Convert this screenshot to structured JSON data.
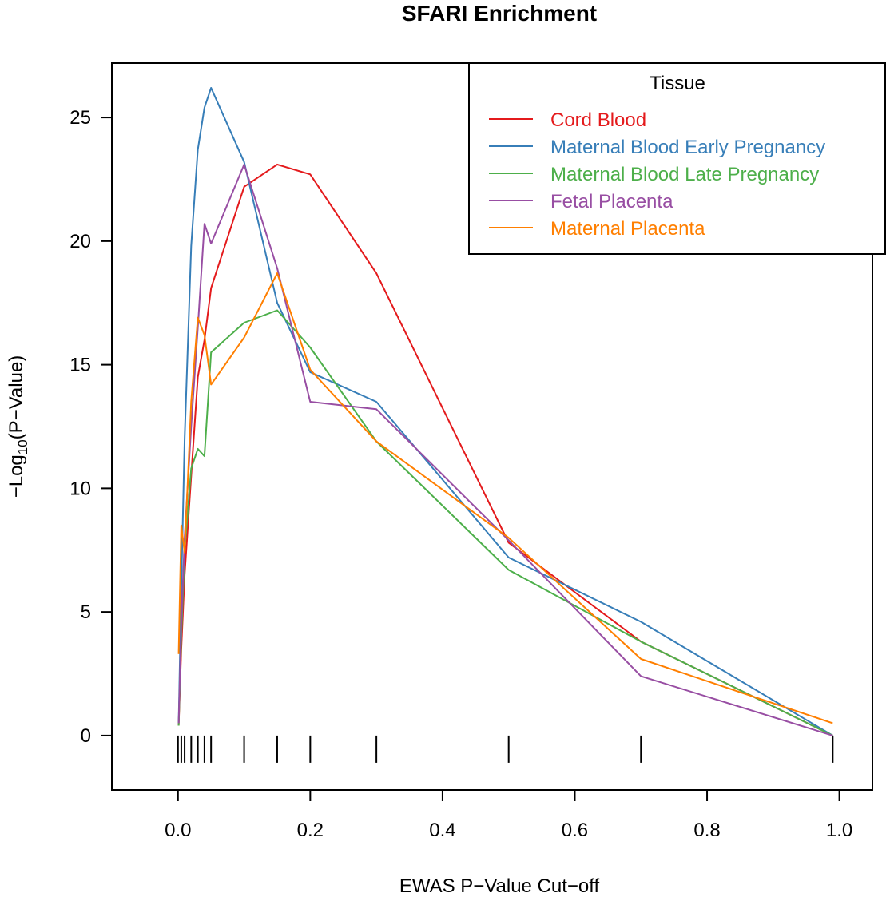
{
  "chart_data": {
    "type": "line",
    "title": "SFARI Enrichment",
    "xlabel": "EWAS P−Value Cut−off",
    "ylabel_main": "−Log",
    "ylabel_sub": "10",
    "ylabel_rest": "(P−Value)",
    "xlim": [
      -0.1,
      1.05
    ],
    "ylim": [
      -2.2,
      27.2
    ],
    "x_ticks": [
      0.0,
      0.2,
      0.4,
      0.6,
      0.8,
      1.0
    ],
    "x_tick_labels": [
      "0.0",
      "0.2",
      "0.4",
      "0.6",
      "0.8",
      "1.0"
    ],
    "y_ticks": [
      0,
      5,
      10,
      15,
      20,
      25
    ],
    "y_tick_labels": [
      "0",
      "5",
      "10",
      "15",
      "20",
      "25"
    ],
    "rug_x": [
      0.0,
      0.005,
      0.01,
      0.02,
      0.03,
      0.04,
      0.05,
      0.1,
      0.15,
      0.2,
      0.3,
      0.5,
      0.7,
      0.99
    ],
    "legend": {
      "title": "Tissue",
      "position": "top-right"
    },
    "series": [
      {
        "name": "Cord Blood",
        "color": "#e41a1c",
        "x": [
          0.001,
          0.005,
          0.01,
          0.02,
          0.03,
          0.04,
          0.05,
          0.1,
          0.15,
          0.2,
          0.3,
          0.5,
          0.7,
          0.99
        ],
        "y": [
          0.4,
          3.5,
          6.5,
          10.5,
          14.5,
          16.0,
          18.1,
          22.2,
          23.1,
          22.7,
          18.7,
          7.8,
          3.8,
          0.0
        ]
      },
      {
        "name": "Maternal Blood Early Pregnancy",
        "color": "#377eb8",
        "x": [
          0.001,
          0.005,
          0.01,
          0.02,
          0.03,
          0.04,
          0.05,
          0.1,
          0.15,
          0.2,
          0.3,
          0.5,
          0.7,
          0.99
        ],
        "y": [
          0.5,
          6.0,
          12.0,
          19.8,
          23.7,
          25.4,
          26.2,
          23.2,
          17.5,
          14.7,
          13.5,
          7.2,
          4.6,
          0.0
        ]
      },
      {
        "name": "Maternal Blood Late Pregnancy",
        "color": "#4daf4a",
        "x": [
          0.001,
          0.005,
          0.01,
          0.02,
          0.03,
          0.04,
          0.05,
          0.1,
          0.15,
          0.2,
          0.3,
          0.5,
          0.7,
          0.99
        ],
        "y": [
          0.4,
          4.0,
          7.5,
          10.8,
          11.6,
          11.3,
          15.5,
          16.7,
          17.2,
          15.7,
          11.9,
          6.7,
          3.8,
          0.0
        ]
      },
      {
        "name": "Fetal Placenta",
        "color": "#984ea3",
        "x": [
          0.001,
          0.005,
          0.01,
          0.02,
          0.03,
          0.04,
          0.05,
          0.1,
          0.15,
          0.2,
          0.3,
          0.5,
          0.7,
          0.99
        ],
        "y": [
          0.5,
          4.5,
          8.0,
          12.5,
          16.5,
          20.7,
          19.9,
          23.1,
          18.9,
          13.5,
          13.2,
          7.9,
          2.4,
          0.0
        ]
      },
      {
        "name": "Maternal Placenta",
        "color": "#ff7f00",
        "x": [
          0.001,
          0.005,
          0.01,
          0.02,
          0.03,
          0.04,
          0.05,
          0.1,
          0.15,
          0.2,
          0.3,
          0.5,
          0.7,
          0.99
        ],
        "y": [
          3.3,
          8.5,
          7.4,
          13.5,
          16.9,
          16.2,
          14.2,
          16.1,
          18.7,
          14.8,
          11.9,
          8.0,
          3.1,
          0.5
        ]
      }
    ]
  }
}
